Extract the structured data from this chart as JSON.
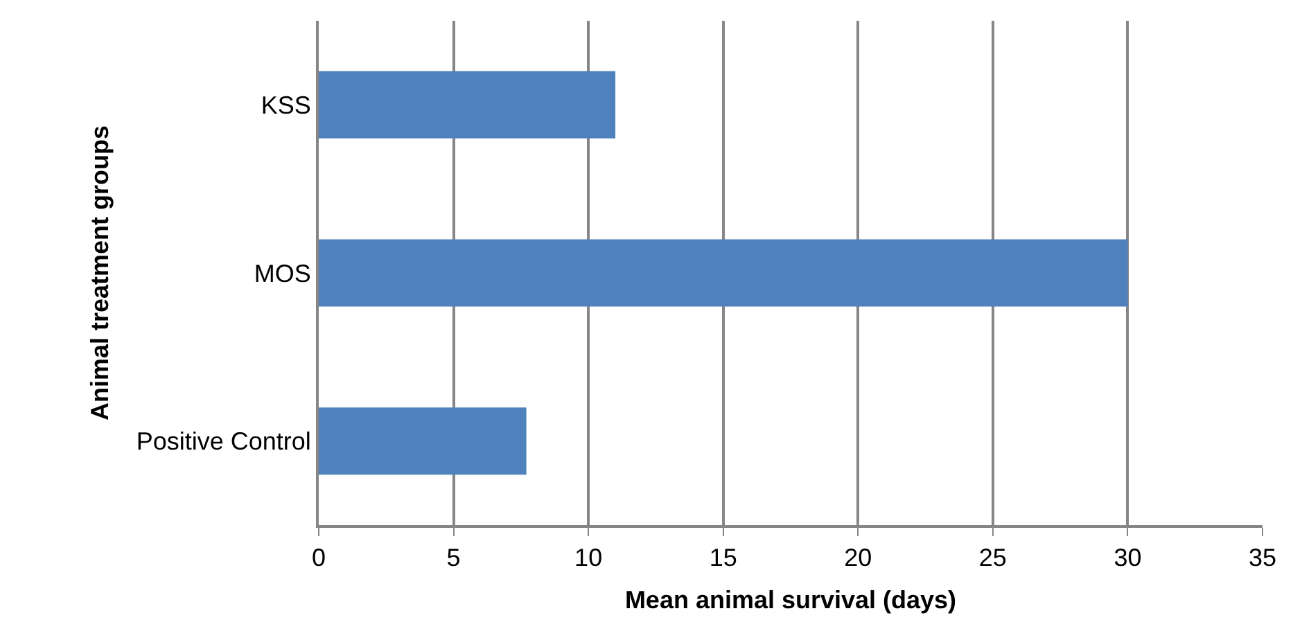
{
  "chart_data": {
    "type": "bar",
    "orientation": "horizontal",
    "categories": [
      "KSS",
      "MOS",
      "Positive Control"
    ],
    "values": [
      11,
      30,
      7.7
    ],
    "color": "#4f81bd",
    "xlabel": "Mean animal survival (days)",
    "ylabel": "Animal treatment groups",
    "xlim": [
      0,
      35
    ],
    "xticks": [
      0,
      5,
      10,
      15,
      20,
      25,
      30,
      35
    ],
    "grid": "x",
    "legend": false
  }
}
